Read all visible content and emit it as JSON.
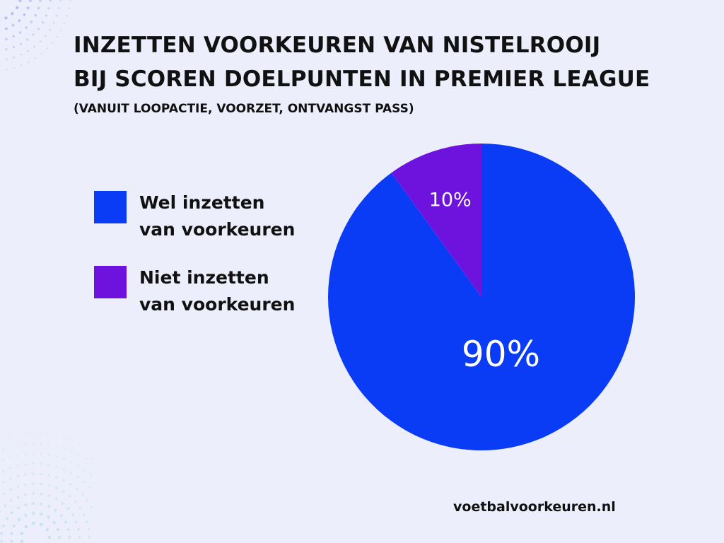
{
  "title_lines": [
    "INZETTEN VOORKEUREN VAN NISTELROOIJ",
    "BIJ SCOREN DOELPUNTEN IN PREMIER LEAGUE"
  ],
  "subtitle": "(VANUIT LOOPACTIE, VOORZET, ONTVANGST PASS)",
  "source": "voetbalvoorkeuren.nl",
  "chart_data": {
    "type": "pie",
    "title": "INZETTEN VOORKEUREN VAN NISTELROOIJ BIJ SCOREN DOELPUNTEN IN PREMIER LEAGUE",
    "subtitle": "(VANUIT LOOPACTIE, VOORZET, ONTVANGST PASS)",
    "legend_position": "left",
    "slices": [
      {
        "name": "Wel inzetten van voorkeuren",
        "legend_lines": [
          "Wel inzetten",
          "van voorkeuren"
        ],
        "value": 90,
        "label": "90%",
        "color": "#0A3CF5"
      },
      {
        "name": "Niet inzetten van voorkeuren",
        "legend_lines": [
          "Niet inzetten",
          "van voorkeuren"
        ],
        "value": 10,
        "label": "10%",
        "color": "#6E12DE"
      }
    ]
  },
  "colors": {
    "background": "#ECEEFC",
    "text": "#111111",
    "slice_label": "#FFFFFF"
  }
}
